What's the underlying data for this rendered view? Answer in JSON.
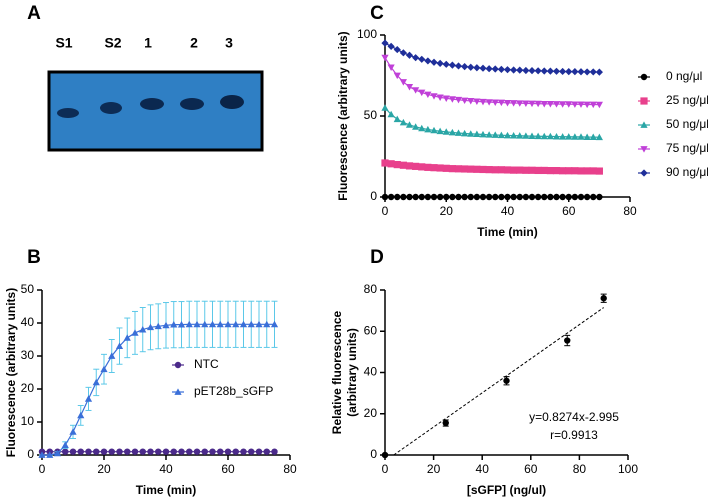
{
  "chart_data": [
    {
      "type": "gel",
      "panel_label": "A",
      "lanes": [
        "S1",
        "S2",
        "1",
        "2",
        "3"
      ]
    },
    {
      "type": "line",
      "panel_label": "B",
      "x_label": "Time (min)",
      "y_label": "Fluorescence (arbitrary units)",
      "xlim": [
        0,
        80
      ],
      "ylim": [
        0,
        50
      ],
      "xticks": [
        0,
        20,
        40,
        60,
        80
      ],
      "yticks": [
        0,
        10,
        20,
        30,
        40,
        50
      ],
      "legend": "center",
      "x": [
        0,
        2.5,
        5,
        7.5,
        10,
        12.5,
        15,
        17.5,
        20,
        22.5,
        25,
        27.5,
        30,
        32.5,
        35,
        37.5,
        40,
        42.5,
        45,
        47.5,
        50,
        52.5,
        55,
        57.5,
        60,
        62.5,
        65,
        67.5,
        70,
        72.5,
        75
      ],
      "series": [
        {
          "name": "NTC",
          "color": "#4b2a8a",
          "error_color": "#9b7fd0",
          "marker": "circle",
          "values": [
            1,
            1,
            1,
            1,
            1,
            1,
            1,
            1,
            1,
            1,
            1,
            1,
            1,
            1,
            1,
            1,
            1,
            1,
            1,
            1,
            1,
            1,
            1,
            1,
            1,
            1,
            1,
            1,
            1,
            1,
            1
          ],
          "errors": [
            0.3,
            0.3,
            0.3,
            0.3,
            0.3,
            0.3,
            0.3,
            0.3,
            0.3,
            0.3,
            0.3,
            0.3,
            0.3,
            0.3,
            0.3,
            0.3,
            0.3,
            0.3,
            0.3,
            0.3,
            0.3,
            0.3,
            0.3,
            0.3,
            0.3,
            0.3,
            0.3,
            0.3,
            0.3,
            0.3,
            0.3
          ]
        },
        {
          "name": "pET28b_sGFP",
          "color": "#3a6fd8",
          "error_color": "#5bc8e8",
          "marker": "triangle",
          "values": [
            0,
            0,
            0.5,
            3,
            7,
            12,
            17,
            22,
            26,
            30,
            33,
            35.5,
            37,
            38,
            38.7,
            39,
            39.3,
            39.5,
            39.5,
            39.6,
            39.6,
            39.6,
            39.6,
            39.6,
            39.6,
            39.6,
            39.6,
            39.6,
            39.6,
            39.6,
            39.6
          ],
          "errors": [
            0,
            0,
            0.5,
            1,
            2,
            3,
            3.5,
            4,
            4.5,
            5,
            5.5,
            6,
            6.5,
            6.7,
            6.8,
            6.8,
            6.9,
            7,
            7,
            7,
            7,
            7,
            7,
            7,
            7,
            7,
            7,
            7,
            7,
            7,
            7
          ]
        }
      ]
    },
    {
      "type": "line",
      "panel_label": "C",
      "x_label": "Time (min)",
      "y_label": "Fluorescence (arbitrary units)",
      "xlim": [
        0,
        80
      ],
      "ylim": [
        0,
        100
      ],
      "xticks": [
        0,
        20,
        40,
        60,
        80
      ],
      "yticks": [
        0,
        50,
        100
      ],
      "legend": "outside-right",
      "x": [
        0,
        2,
        4,
        6,
        8,
        10,
        12,
        14,
        16,
        18,
        20,
        22,
        24,
        26,
        28,
        30,
        32,
        34,
        36,
        38,
        40,
        42,
        44,
        46,
        48,
        50,
        52,
        54,
        56,
        58,
        60,
        62,
        64,
        66,
        68,
        70
      ],
      "series": [
        {
          "name": "0 ng/μl",
          "color": "#000000",
          "marker": "circle",
          "values": [
            0,
            0,
            0,
            0,
            0,
            0,
            0,
            0,
            0,
            0,
            0,
            0,
            0,
            0,
            0,
            0,
            0,
            0,
            0,
            0,
            0,
            0,
            0,
            0,
            0,
            0,
            0,
            0,
            0,
            0,
            0,
            0,
            0,
            0,
            0,
            0
          ]
        },
        {
          "name": "25 ng/μl",
          "color": "#e8408c",
          "marker": "square",
          "values": [
            21,
            20.5,
            20,
            19.6,
            19.2,
            18.9,
            18.6,
            18.3,
            18.1,
            17.9,
            17.7,
            17.5,
            17.4,
            17.3,
            17.2,
            17.1,
            17,
            16.9,
            16.8,
            16.8,
            16.7,
            16.6,
            16.6,
            16.5,
            16.5,
            16.4,
            16.4,
            16.3,
            16.3,
            16.2,
            16.2,
            16.2,
            16.1,
            16.1,
            16.1,
            16
          ]
        },
        {
          "name": "50 ng/μl",
          "color": "#2aa6a6",
          "marker": "triangle",
          "values": [
            55,
            51,
            48,
            46,
            44.5,
            43.3,
            42.4,
            41.7,
            41.1,
            40.6,
            40.2,
            39.8,
            39.5,
            39.2,
            39,
            38.8,
            38.6,
            38.4,
            38.3,
            38.1,
            38,
            37.9,
            37.8,
            37.7,
            37.6,
            37.5,
            37.4,
            37.4,
            37.3,
            37.2,
            37.2,
            37.1,
            37.1,
            37,
            37,
            36.9
          ]
        },
        {
          "name": "75 ng/μl",
          "color": "#c040d8",
          "marker": "triangle-down",
          "values": [
            86,
            80,
            75,
            71,
            68,
            66,
            64.5,
            63.3,
            62.3,
            61.5,
            60.9,
            60.4,
            60,
            59.6,
            59.3,
            59,
            58.8,
            58.6,
            58.4,
            58.3,
            58.1,
            58,
            57.9,
            57.8,
            57.7,
            57.6,
            57.5,
            57.5,
            57.4,
            57.3,
            57.3,
            57.2,
            57.2,
            57.1,
            57.1,
            57
          ]
        },
        {
          "name": "90 ng/μl",
          "color": "#1f2f9a",
          "marker": "diamond",
          "values": [
            95,
            93,
            91,
            89,
            87.5,
            86,
            85,
            84,
            83.2,
            82.5,
            81.9,
            81.4,
            80.9,
            80.5,
            80.1,
            79.8,
            79.5,
            79.2,
            79,
            78.8,
            78.6,
            78.4,
            78.3,
            78.1,
            78,
            77.9,
            77.8,
            77.7,
            77.6,
            77.5,
            77.4,
            77.4,
            77.3,
            77.2,
            77.2,
            77.1
          ]
        }
      ]
    },
    {
      "type": "scatter",
      "panel_label": "D",
      "x_label": "[sGFP] (ng/ul)",
      "y_label": [
        "Relative fluorescence",
        "(arbitrary units)"
      ],
      "xlim": [
        0,
        100
      ],
      "ylim": [
        0,
        80
      ],
      "xticks": [
        0,
        20,
        40,
        60,
        80,
        100
      ],
      "yticks": [
        0,
        20,
        40,
        60,
        80
      ],
      "x": [
        0,
        25,
        50,
        75,
        90
      ],
      "series": [
        {
          "color": "#000000",
          "marker": "circle",
          "values": [
            0,
            15.5,
            36,
            55.5,
            76
          ],
          "errors": [
            0.5,
            1.5,
            2,
            2.5,
            2
          ]
        }
      ],
      "trendline": {
        "x": [
          3.6,
          90
        ],
        "values": [
          0,
          71.5
        ]
      },
      "annotations": [
        "y=0.8274x-2.995",
        "r=0.9913"
      ]
    }
  ]
}
